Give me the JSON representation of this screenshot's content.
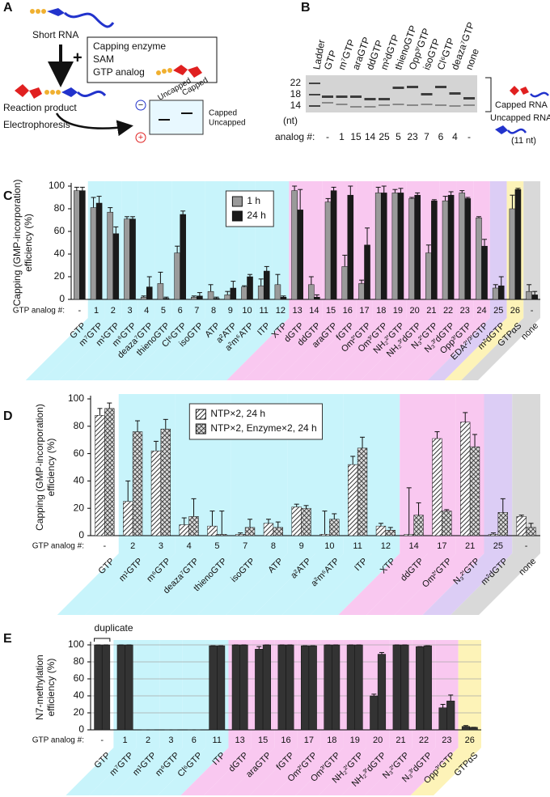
{
  "scheme": {
    "label": "A",
    "short_rna": "Short RNA",
    "plus": "+",
    "reagents": [
      "Capping enzyme",
      "SAM",
      "GTP analog"
    ],
    "reaction_product": "Reaction product",
    "electrophoresis": "Electrophoresis",
    "gel_headers": [
      "Uncapped",
      "Capped"
    ],
    "band_labels": [
      "Capped",
      "Uncapped"
    ],
    "electrodes": [
      "−",
      "+"
    ]
  },
  "gel": {
    "label": "B",
    "ladder": "Ladder",
    "ladder_sizes": [
      "22",
      "18",
      "14"
    ],
    "unit": "(nt)",
    "analog_label": "analog #:",
    "lanes": [
      {
        "name": "GTP",
        "analog": "-",
        "color": "#111111"
      },
      {
        "name": "m⁷GTP",
        "analog": "1",
        "color": "#29abe2"
      },
      {
        "name": "araGTP",
        "analog": "15",
        "color": "#e020c0"
      },
      {
        "name": "ddGTP",
        "analog": "14",
        "color": "#e020c0"
      },
      {
        "name": "m²dGTP",
        "analog": "25",
        "color": "#7b2fc9"
      },
      {
        "name": "thienoGTP",
        "analog": "5",
        "color": "#29abe2"
      },
      {
        "name": "Opp³′GTP",
        "analog": "23",
        "color": "#e020c0"
      },
      {
        "name": "isoGTP",
        "analog": "7",
        "color": "#29abe2"
      },
      {
        "name": "Cl⁶GTP",
        "analog": "6",
        "color": "#29abe2"
      },
      {
        "name": "deaza⁷GTP",
        "analog": "4",
        "color": "#29abe2"
      },
      {
        "name": "none",
        "analog": "-",
        "color": "#111111"
      }
    ],
    "capped": "Capped RNA",
    "uncapped": "Uncapped RNA",
    "uncapped_size": "(11 nt)"
  },
  "chart_data": [
    {
      "type": "bar",
      "label": "C",
      "ylabel": [
        "Capping (GMP-incorporation)",
        "efficiency (%)"
      ],
      "xlabel": "GTP analog #:",
      "categories": [
        "-",
        "1",
        "2",
        "3",
        "4",
        "5",
        "6",
        "7",
        "8",
        "9",
        "10",
        "11",
        "12",
        "13",
        "14",
        "15",
        "16",
        "17",
        "18",
        "19",
        "20",
        "21",
        "22",
        "23",
        "24",
        "25",
        "26",
        "-"
      ],
      "names": [
        "GTP",
        "m⁷GTP",
        "m¹GTP",
        "m⁶GTP",
        "deaza⁷GTP",
        "thienoGTP",
        "Cl⁶GTP",
        "isoGTP",
        "ATP",
        "a²ATP",
        "a²m⁶ATP",
        "ITP",
        "XTP",
        "dGTP",
        "ddGTP",
        "araGTP",
        "fGTP",
        "Om²′GTP",
        "Om³′GTP",
        "NH₂²′GTP",
        "NH₂³′dGTP",
        "N₃²′GTP",
        "N₃³′dGTP",
        "Opp³′GTP",
        "EDA²′/³′GTP",
        "m²dGTP",
        "GTPαS",
        "none"
      ],
      "band_colors": [
        "#ffffff",
        "#c8f4fb",
        "#c8f4fb",
        "#c8f4fb",
        "#c8f4fb",
        "#c8f4fb",
        "#c8f4fb",
        "#c8f4fb",
        "#c8f4fb",
        "#c8f4fb",
        "#c8f4fb",
        "#c8f4fb",
        "#c8f4fb",
        "#f9c8f0",
        "#f9c8f0",
        "#f9c8f0",
        "#f9c8f0",
        "#f9c8f0",
        "#f9c8f0",
        "#f9c8f0",
        "#f9c8f0",
        "#f9c8f0",
        "#f9c8f0",
        "#f9c8f0",
        "#f9c8f0",
        "#dccdf5",
        "#fdf3b8",
        "#d9d9d9"
      ],
      "label_colors": [
        "#111111",
        "#2233aa",
        "#2233aa",
        "#2233aa",
        "#2233aa",
        "#2233aa",
        "#2233aa",
        "#2233aa",
        "#2233aa",
        "#2233aa",
        "#2233aa",
        "#2233aa",
        "#2233aa",
        "#d020b0",
        "#d020b0",
        "#d020b0",
        "#d020b0",
        "#d020b0",
        "#d020b0",
        "#d020b0",
        "#d020b0",
        "#d020b0",
        "#d020b0",
        "#d020b0",
        "#d020b0",
        "#7b2fc9",
        "#e06a10",
        "#111111"
      ],
      "series": [
        {
          "name": "1 h",
          "color": "#9a9a9a",
          "values": [
            96,
            81,
            77,
            71,
            2,
            14,
            41,
            2,
            7,
            4,
            11,
            12,
            13,
            96,
            13,
            86,
            29,
            14,
            94,
            94,
            89,
            41,
            87,
            94,
            72,
            10,
            80,
            7
          ],
          "errors": [
            3,
            9,
            4,
            2,
            1,
            10,
            6,
            1,
            6,
            3,
            1,
            6,
            9,
            4,
            7,
            3,
            10,
            3,
            5,
            3,
            1,
            7,
            4,
            2,
            1,
            3,
            12,
            6
          ]
        },
        {
          "name": "24 h",
          "color": "#1a1a1a",
          "values": [
            96,
            85,
            58,
            71,
            11,
            1,
            75,
            3,
            1,
            10,
            20,
            25,
            2,
            79,
            2,
            96,
            92,
            48,
            94,
            94,
            92,
            87,
            92,
            89,
            47,
            12,
            97,
            4
          ],
          "errors": [
            3,
            6,
            6,
            2,
            9,
            1,
            3,
            3,
            1,
            6,
            2,
            4,
            1,
            18,
            2,
            3,
            8,
            15,
            6,
            4,
            2,
            1,
            3,
            1,
            6,
            8,
            1,
            3
          ]
        }
      ],
      "ylim": [
        0,
        100
      ],
      "yticks": [
        0,
        20,
        40,
        60,
        80,
        100
      ],
      "grid": false,
      "legend": "top-center"
    },
    {
      "type": "bar",
      "label": "D",
      "ylabel": [
        "Capping (GMP-incorporation)",
        "efficiency (%)"
      ],
      "xlabel": "GTP analog #:",
      "categories": [
        "-",
        "2",
        "3",
        "4",
        "5",
        "7",
        "8",
        "9",
        "10",
        "11",
        "12",
        "14",
        "17",
        "21",
        "25",
        "-"
      ],
      "names": [
        "GTP",
        "m¹GTP",
        "m⁶GTP",
        "deaza⁷GTP",
        "thienoGTP",
        "isoGTP",
        "ATP",
        "a²ATP",
        "a²m⁶ATP",
        "ITP",
        "XTP",
        "ddGTP",
        "Om²′GTP",
        "N₃²′GTP",
        "m²dGTP",
        "none"
      ],
      "band_colors": [
        "#ffffff",
        "#c8f4fb",
        "#c8f4fb",
        "#c8f4fb",
        "#c8f4fb",
        "#c8f4fb",
        "#c8f4fb",
        "#c8f4fb",
        "#c8f4fb",
        "#c8f4fb",
        "#c8f4fb",
        "#f9c8f0",
        "#f9c8f0",
        "#f9c8f0",
        "#dccdf5",
        "#d9d9d9"
      ],
      "label_colors": [
        "#111111",
        "#2233aa",
        "#2233aa",
        "#2233aa",
        "#2233aa",
        "#2233aa",
        "#2233aa",
        "#2233aa",
        "#2233aa",
        "#2233aa",
        "#2233aa",
        "#d020b0",
        "#d020b0",
        "#d020b0",
        "#7b2fc9",
        "#111111"
      ],
      "series": [
        {
          "name": "NTP×2, 24 h",
          "color": "#555555",
          "pattern": "hatch",
          "values": [
            88,
            25,
            62,
            8,
            7,
            1,
            9,
            21,
            1,
            52,
            7,
            1,
            71,
            83,
            1,
            14
          ],
          "errors": [
            5,
            15,
            7,
            5,
            11,
            1,
            3,
            2,
            17,
            6,
            2,
            34,
            5,
            7,
            1,
            1
          ]
        },
        {
          "name": "NTP×2, Enzyme×2, 24 h",
          "color": "#333333",
          "pattern": "crosshatch",
          "values": [
            93,
            76,
            78,
            14,
            1,
            6,
            6,
            20,
            12,
            64,
            4,
            15,
            18,
            65,
            17,
            6
          ],
          "errors": [
            4,
            8,
            7,
            13,
            17,
            6,
            4,
            2,
            4,
            8,
            2,
            9,
            1,
            9,
            10,
            3
          ]
        }
      ],
      "ylim": [
        0,
        100
      ],
      "yticks": [
        0,
        20,
        40,
        60,
        80,
        100
      ],
      "grid": false,
      "legend": "top-left"
    },
    {
      "type": "bar",
      "label": "E",
      "ylabel": [
        "N7-methylation",
        "efficiency (%)"
      ],
      "xlabel": "GTP analog #:",
      "annotation": "duplicate",
      "categories": [
        "-",
        "1",
        "2",
        "3",
        "6",
        "11",
        "13",
        "15",
        "16",
        "17",
        "18",
        "19",
        "20",
        "21",
        "22",
        "23",
        "26"
      ],
      "names": [
        "GTP",
        "m⁷GTP",
        "m¹GTP",
        "m⁶GTP",
        "Cl⁶GTP",
        "ITP",
        "dGTP",
        "araGTP",
        "fGTP",
        "Om²′GTP",
        "Om³′GTP",
        "NH₂²′GTP",
        "NH₂³′dGTP",
        "N₃²′GTP",
        "N₃³′dGTP",
        "Opp³′GTP",
        "GTPαS"
      ],
      "band_colors": [
        "#ffffff",
        "#c8f4fb",
        "#c8f4fb",
        "#c8f4fb",
        "#c8f4fb",
        "#c8f4fb",
        "#f9c8f0",
        "#f9c8f0",
        "#f9c8f0",
        "#f9c8f0",
        "#f9c8f0",
        "#f9c8f0",
        "#f9c8f0",
        "#f9c8f0",
        "#f9c8f0",
        "#f9c8f0",
        "#fdf3b8"
      ],
      "label_colors": [
        "#111111",
        "#2233aa",
        "#2233aa",
        "#2233aa",
        "#2233aa",
        "#2233aa",
        "#d020b0",
        "#d020b0",
        "#d020b0",
        "#d020b0",
        "#d020b0",
        "#d020b0",
        "#d020b0",
        "#d020b0",
        "#d020b0",
        "#d020b0",
        "#e06a10"
      ],
      "series": [
        {
          "color": "#333333",
          "values": [
            100,
            100,
            0,
            0,
            0,
            99,
            100,
            95,
            100,
            99,
            100,
            100,
            40,
            100,
            98,
            26,
            4
          ],
          "errors": [
            0,
            0,
            0,
            0,
            0,
            0,
            0,
            3,
            0,
            0,
            0,
            0,
            2,
            0,
            0,
            4,
            1
          ]
        },
        {
          "color": "#333333",
          "values": [
            100,
            100,
            0,
            0,
            0,
            99,
            100,
            100,
            100,
            99,
            100,
            100,
            89,
            100,
            99,
            34,
            3
          ],
          "errors": [
            0,
            0,
            0,
            0,
            0,
            0,
            0,
            0,
            0,
            0,
            0,
            0,
            2,
            0,
            0,
            7,
            0
          ]
        }
      ],
      "ylim": [
        0,
        100
      ],
      "yticks": [
        0,
        20,
        40,
        60,
        80,
        100
      ],
      "grid": true
    }
  ]
}
